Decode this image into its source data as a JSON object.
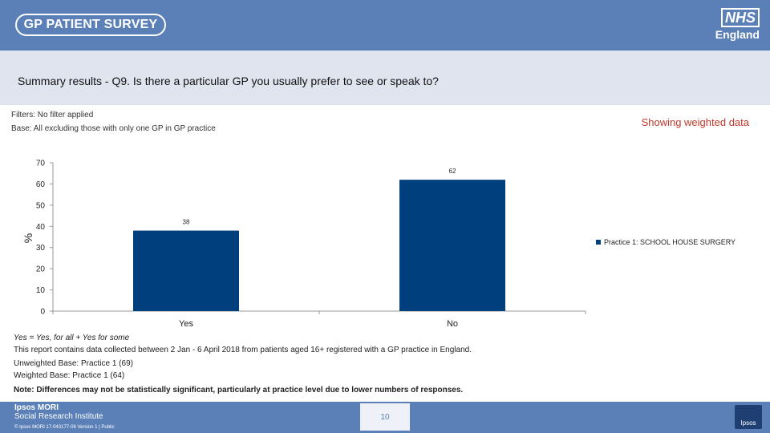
{
  "header": {
    "logo_text": "GP PATIENT SURVEY",
    "nhs_label": "NHS",
    "nhs_sub": "England"
  },
  "title": "Summary results - Q9.  Is there a particular GP you usually prefer to see or speak to?",
  "filters": "Filters: No filter applied",
  "base": "Base: All excluding those with only one GP in GP practice",
  "weighted_label": "Showing weighted data",
  "chart_data": {
    "type": "bar",
    "categories": [
      "Yes",
      "No"
    ],
    "series": [
      {
        "name": "Practice 1: SCHOOL HOUSE SURGERY",
        "values": [
          38,
          62
        ],
        "color": "#003f7d"
      }
    ],
    "ylabel": "%",
    "xlabel": "",
    "ylim": [
      0,
      70
    ],
    "yticks": [
      0,
      10,
      20,
      30,
      40,
      50,
      60,
      70
    ],
    "legend_position": "right"
  },
  "notes": {
    "definition": "Yes = Yes, for all + Yes for some",
    "period": "This report contains data collected between 2 Jan - 6 April 2018 from patients aged 16+ registered with a GP practice in England.",
    "unweighted": "Unweighted Base: Practice 1 (69)",
    "weighted": "Weighted Base: Practice 1 (64)",
    "disclaimer": "Note: Differences may not be statistically significant, particularly at practice level due to lower numbers of responses."
  },
  "footer": {
    "org_name": "Ipsos MORI",
    "org_sub": "Social Research Institute",
    "small_print": "© Ipsos MORI     17-043177-06 Version 1 | Public",
    "page_number": "10",
    "badge_text": "Ipsos"
  }
}
